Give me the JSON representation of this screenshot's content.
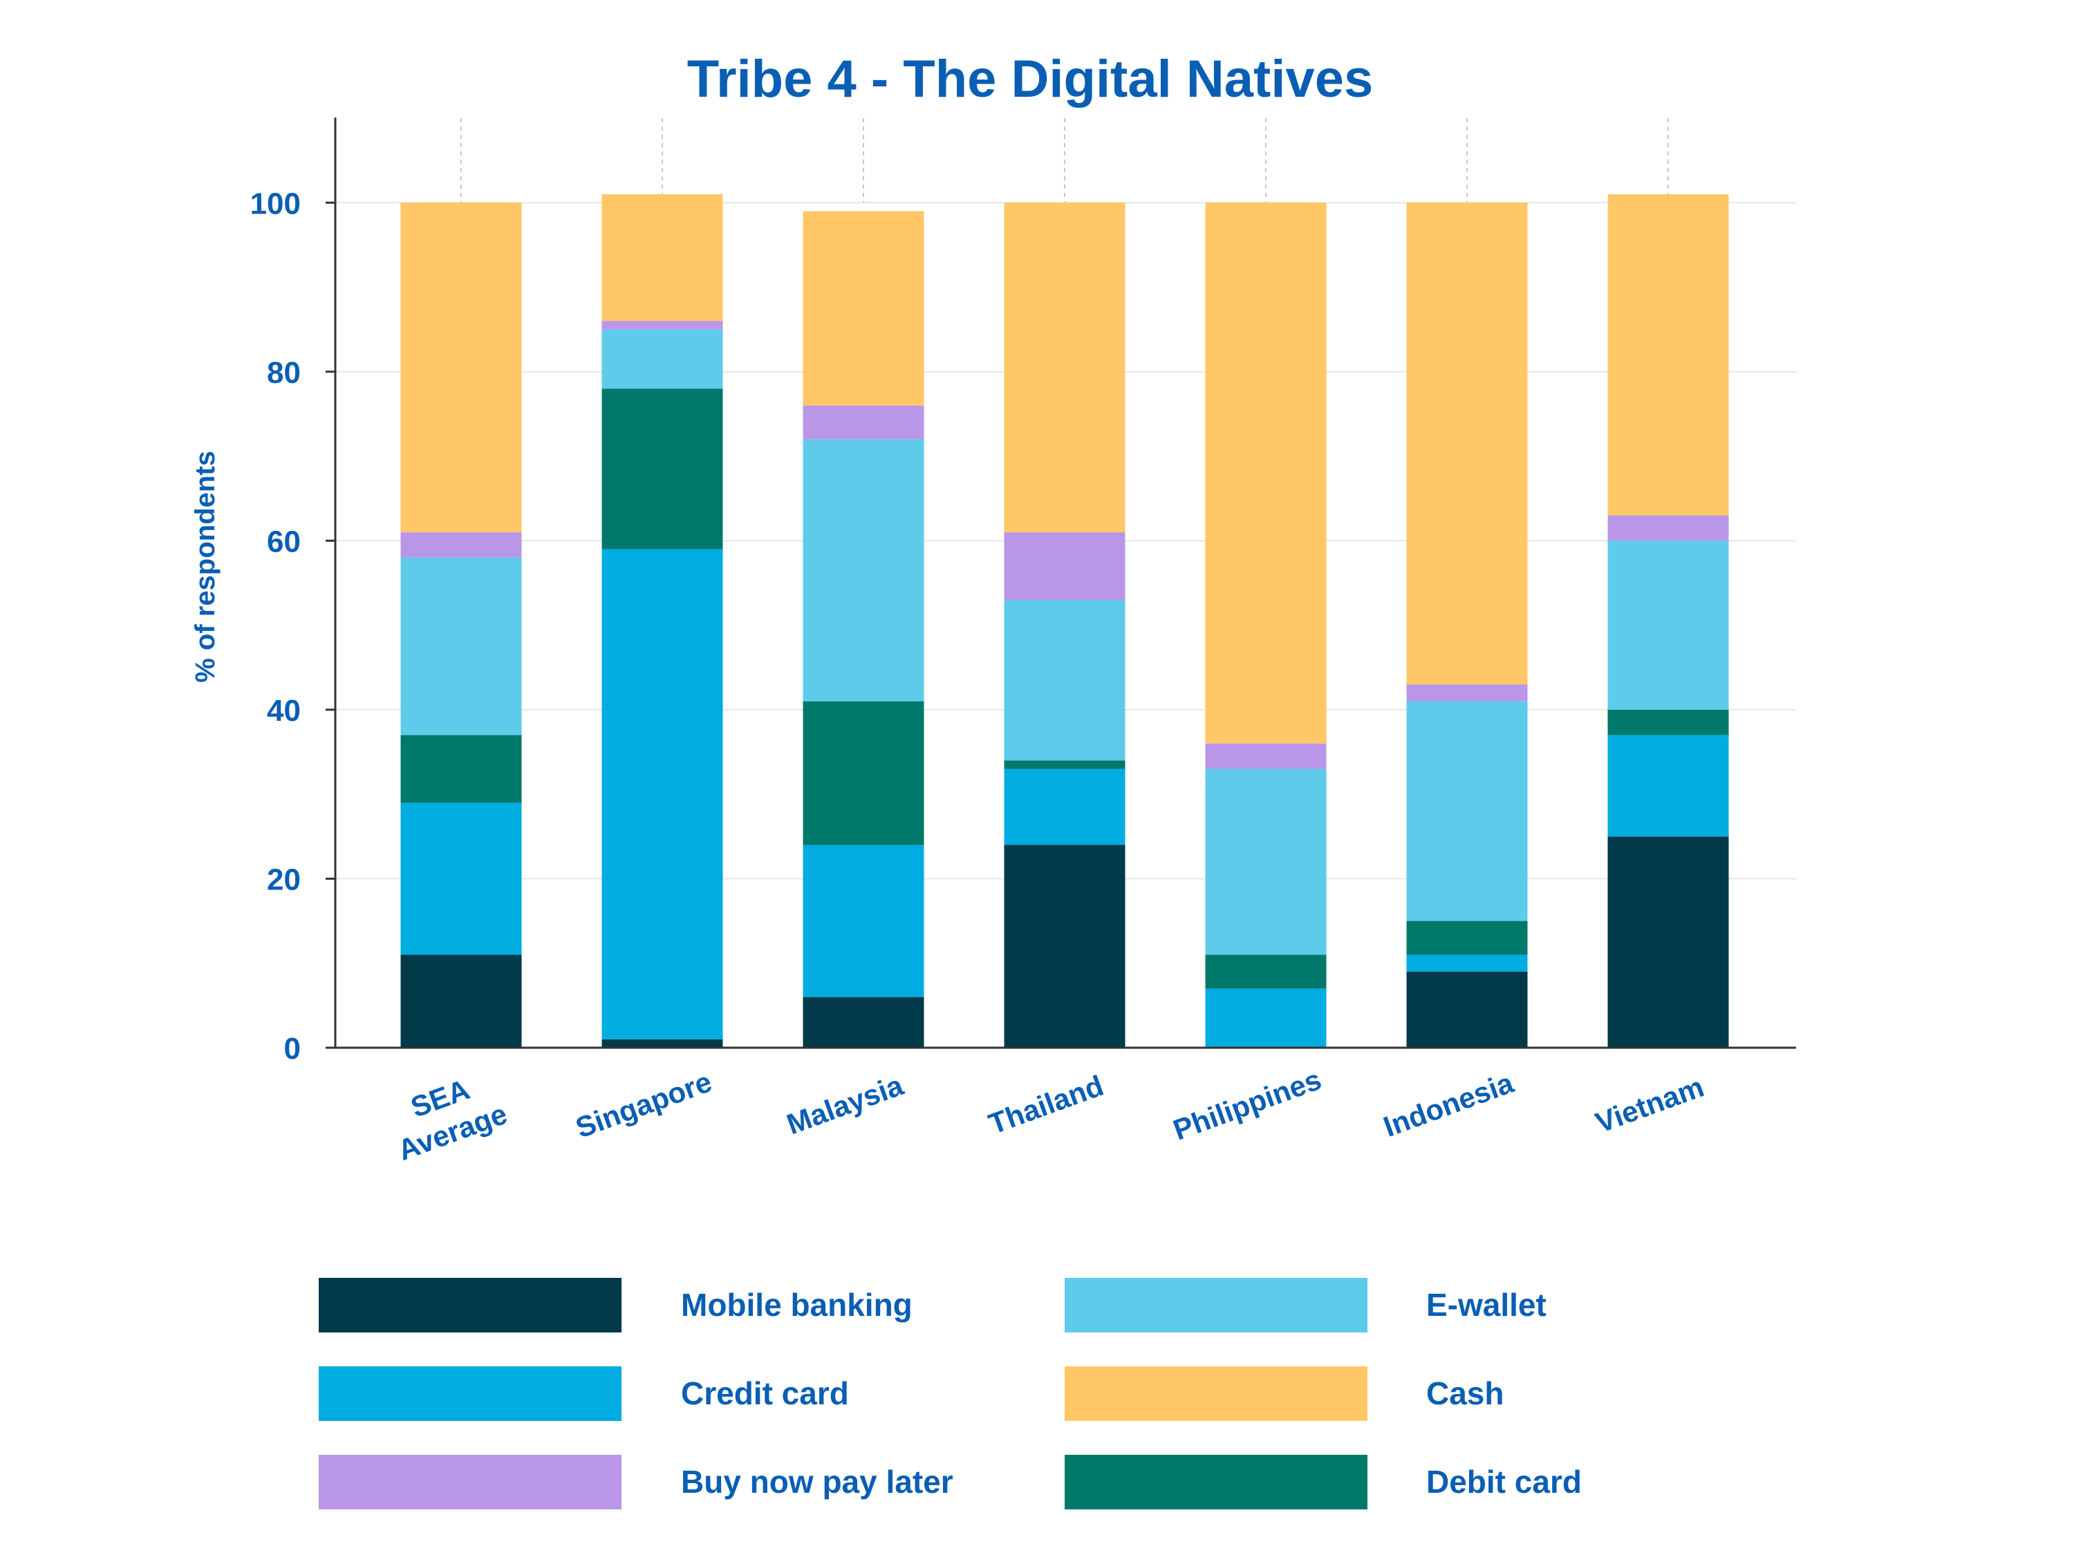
{
  "chart_data": {
    "type": "bar",
    "stacked": true,
    "title": "Tribe 4 - The Digital Natives",
    "xlabel": "",
    "ylabel": "% of respondents",
    "ylim": [
      0,
      110
    ],
    "yticks": [
      0,
      20,
      40,
      60,
      80,
      100
    ],
    "grid": true,
    "legend_position": "bottom",
    "categories": [
      [
        "SEA",
        "Average"
      ],
      [
        "Singapore"
      ],
      [
        "Malaysia"
      ],
      [
        "Thailand"
      ],
      [
        "Philippines"
      ],
      [
        "Indonesia"
      ],
      [
        "Vietnam"
      ]
    ],
    "series": [
      {
        "name": "Mobile banking",
        "color": "#023a4a",
        "values": [
          11,
          1,
          6,
          24,
          0,
          9,
          25
        ]
      },
      {
        "name": "Credit card",
        "color": "#00ace0",
        "values": [
          18,
          58,
          18,
          9,
          7,
          2,
          12
        ]
      },
      {
        "name": "Debit card",
        "color": "#00796b",
        "values": [
          8,
          19,
          17,
          1,
          4,
          4,
          3
        ]
      },
      {
        "name": "E-wallet",
        "color": "#5ecbeb",
        "values": [
          21,
          7,
          31,
          19,
          22,
          26,
          20
        ]
      },
      {
        "name": "Buy now pay later",
        "color": "#b996e8",
        "values": [
          3,
          1,
          4,
          8,
          3,
          2,
          3
        ]
      },
      {
        "name": "Cash",
        "color": "#ffc766",
        "values": [
          39,
          15,
          23,
          39,
          64,
          57,
          38
        ]
      }
    ],
    "legend_order": [
      "Mobile banking",
      "E-wallet",
      "Credit card",
      "Cash",
      "Buy now pay later",
      "Debit card"
    ]
  }
}
